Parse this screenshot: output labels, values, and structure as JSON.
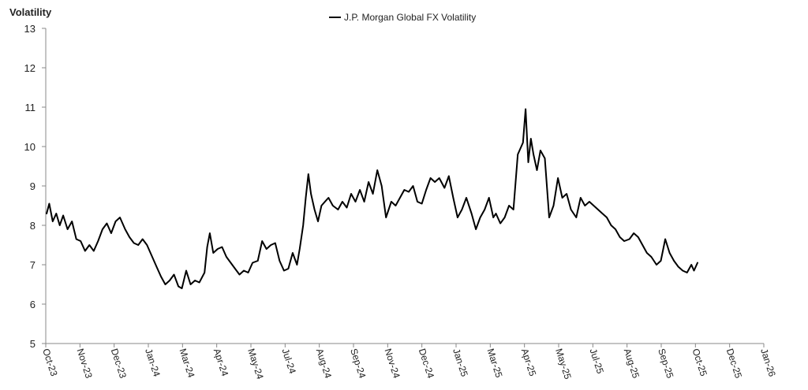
{
  "chart_data": {
    "type": "line",
    "title": "",
    "ylabel": "Volatility",
    "xlabel": "",
    "ylim": [
      5,
      13
    ],
    "yticks": [
      5,
      6,
      7,
      8,
      9,
      10,
      11,
      12,
      13
    ],
    "grid": false,
    "legend_position": "top-center",
    "line_color": "#000000",
    "xticks": [
      "Oct-23",
      "Nov-23",
      "Dec-23",
      "Jan-24",
      "Mar-24",
      "Apr-24",
      "May-24",
      "Jul-24",
      "Aug-24",
      "Sep-24",
      "Nov-24",
      "Dec-24",
      "Jan-25",
      "Mar-25",
      "Apr-25",
      "May-25",
      "Jul-25",
      "Aug-25",
      "Sep-25",
      "Oct-25",
      "Dec-25",
      "Jan-26"
    ],
    "series": [
      {
        "name": "J.P. Morgan Global FX Volatility",
        "points": [
          [
            "2023-10-02",
            8.3
          ],
          [
            "2023-10-05",
            8.55
          ],
          [
            "2023-10-09",
            8.1
          ],
          [
            "2023-10-13",
            8.3
          ],
          [
            "2023-10-17",
            8.0
          ],
          [
            "2023-10-21",
            8.25
          ],
          [
            "2023-10-26",
            7.9
          ],
          [
            "2023-10-31",
            8.1
          ],
          [
            "2023-11-05",
            7.65
          ],
          [
            "2023-11-10",
            7.6
          ],
          [
            "2023-11-15",
            7.35
          ],
          [
            "2023-11-20",
            7.5
          ],
          [
            "2023-11-25",
            7.35
          ],
          [
            "2023-11-30",
            7.6
          ],
          [
            "2023-12-05",
            7.9
          ],
          [
            "2023-12-10",
            8.05
          ],
          [
            "2023-12-15",
            7.8
          ],
          [
            "2023-12-20",
            8.1
          ],
          [
            "2023-12-25",
            8.2
          ],
          [
            "2023-12-31",
            7.9
          ],
          [
            "2024-01-05",
            7.7
          ],
          [
            "2024-01-10",
            7.55
          ],
          [
            "2024-01-15",
            7.5
          ],
          [
            "2024-01-20",
            7.65
          ],
          [
            "2024-01-25",
            7.5
          ],
          [
            "2024-01-31",
            7.2
          ],
          [
            "2024-02-05",
            6.95
          ],
          [
            "2024-02-10",
            6.7
          ],
          [
            "2024-02-15",
            6.5
          ],
          [
            "2024-02-20",
            6.6
          ],
          [
            "2024-02-25",
            6.75
          ],
          [
            "2024-03-01",
            6.45
          ],
          [
            "2024-03-05",
            6.4
          ],
          [
            "2024-03-10",
            6.85
          ],
          [
            "2024-03-15",
            6.5
          ],
          [
            "2024-03-20",
            6.6
          ],
          [
            "2024-03-25",
            6.55
          ],
          [
            "2024-03-31",
            6.8
          ],
          [
            "2024-04-03",
            7.45
          ],
          [
            "2024-04-06",
            7.8
          ],
          [
            "2024-04-10",
            7.3
          ],
          [
            "2024-04-15",
            7.4
          ],
          [
            "2024-04-20",
            7.45
          ],
          [
            "2024-04-25",
            7.2
          ],
          [
            "2024-04-30",
            7.05
          ],
          [
            "2024-05-05",
            6.9
          ],
          [
            "2024-05-10",
            6.75
          ],
          [
            "2024-05-15",
            6.85
          ],
          [
            "2024-05-20",
            6.8
          ],
          [
            "2024-05-25",
            7.05
          ],
          [
            "2024-05-31",
            7.1
          ],
          [
            "2024-06-05",
            7.6
          ],
          [
            "2024-06-10",
            7.4
          ],
          [
            "2024-06-15",
            7.5
          ],
          [
            "2024-06-20",
            7.55
          ],
          [
            "2024-06-25",
            7.1
          ],
          [
            "2024-06-30",
            6.85
          ],
          [
            "2024-07-05",
            6.9
          ],
          [
            "2024-07-10",
            7.3
          ],
          [
            "2024-07-15",
            7.0
          ],
          [
            "2024-07-18",
            7.4
          ],
          [
            "2024-07-22",
            8.0
          ],
          [
            "2024-07-25",
            8.7
          ],
          [
            "2024-07-28",
            9.3
          ],
          [
            "2024-07-31",
            8.8
          ],
          [
            "2024-08-04",
            8.4
          ],
          [
            "2024-08-08",
            8.1
          ],
          [
            "2024-08-12",
            8.5
          ],
          [
            "2024-08-16",
            8.6
          ],
          [
            "2024-08-20",
            8.7
          ],
          [
            "2024-08-25",
            8.5
          ],
          [
            "2024-08-31",
            8.4
          ],
          [
            "2024-09-05",
            8.6
          ],
          [
            "2024-09-10",
            8.45
          ],
          [
            "2024-09-15",
            8.8
          ],
          [
            "2024-09-20",
            8.6
          ],
          [
            "2024-09-25",
            8.9
          ],
          [
            "2024-09-30",
            8.6
          ],
          [
            "2024-10-05",
            9.1
          ],
          [
            "2024-10-10",
            8.8
          ],
          [
            "2024-10-15",
            9.4
          ],
          [
            "2024-10-20",
            9.0
          ],
          [
            "2024-10-25",
            8.2
          ],
          [
            "2024-10-31",
            8.6
          ],
          [
            "2024-11-05",
            8.5
          ],
          [
            "2024-11-10",
            8.7
          ],
          [
            "2024-11-15",
            8.9
          ],
          [
            "2024-11-20",
            8.85
          ],
          [
            "2024-11-25",
            9.0
          ],
          [
            "2024-11-30",
            8.6
          ],
          [
            "2024-12-05",
            8.55
          ],
          [
            "2024-12-10",
            8.9
          ],
          [
            "2024-12-15",
            9.2
          ],
          [
            "2024-12-20",
            9.1
          ],
          [
            "2024-12-25",
            9.2
          ],
          [
            "2024-12-31",
            8.95
          ],
          [
            "2025-01-05",
            9.25
          ],
          [
            "2025-01-10",
            8.7
          ],
          [
            "2025-01-15",
            8.2
          ],
          [
            "2025-01-20",
            8.4
          ],
          [
            "2025-01-25",
            8.7
          ],
          [
            "2025-01-31",
            8.3
          ],
          [
            "2025-02-05",
            7.9
          ],
          [
            "2025-02-10",
            8.2
          ],
          [
            "2025-02-15",
            8.4
          ],
          [
            "2025-02-20",
            8.7
          ],
          [
            "2025-02-25",
            8.2
          ],
          [
            "2025-02-28",
            8.3
          ],
          [
            "2025-03-05",
            8.05
          ],
          [
            "2025-03-10",
            8.2
          ],
          [
            "2025-03-15",
            8.5
          ],
          [
            "2025-03-20",
            8.4
          ],
          [
            "2025-03-25",
            9.8
          ],
          [
            "2025-03-31",
            10.1
          ],
          [
            "2025-04-03",
            10.95
          ],
          [
            "2025-04-06",
            9.6
          ],
          [
            "2025-04-09",
            10.2
          ],
          [
            "2025-04-12",
            9.8
          ],
          [
            "2025-04-16",
            9.4
          ],
          [
            "2025-04-20",
            9.9
          ],
          [
            "2025-04-25",
            9.7
          ],
          [
            "2025-04-30",
            8.2
          ],
          [
            "2025-05-05",
            8.5
          ],
          [
            "2025-05-10",
            9.2
          ],
          [
            "2025-05-15",
            8.7
          ],
          [
            "2025-05-20",
            8.8
          ],
          [
            "2025-05-25",
            8.4
          ],
          [
            "2025-05-31",
            8.2
          ],
          [
            "2025-06-05",
            8.7
          ],
          [
            "2025-06-10",
            8.5
          ],
          [
            "2025-06-15",
            8.6
          ],
          [
            "2025-06-20",
            8.5
          ],
          [
            "2025-06-25",
            8.4
          ],
          [
            "2025-06-30",
            8.3
          ],
          [
            "2025-07-05",
            8.2
          ],
          [
            "2025-07-10",
            8.0
          ],
          [
            "2025-07-15",
            7.9
          ],
          [
            "2025-07-20",
            7.7
          ],
          [
            "2025-07-25",
            7.6
          ],
          [
            "2025-07-31",
            7.65
          ],
          [
            "2025-08-05",
            7.8
          ],
          [
            "2025-08-10",
            7.7
          ],
          [
            "2025-08-15",
            7.5
          ],
          [
            "2025-08-20",
            7.3
          ],
          [
            "2025-08-25",
            7.2
          ],
          [
            "2025-08-31",
            7.0
          ],
          [
            "2025-09-05",
            7.1
          ],
          [
            "2025-09-10",
            7.65
          ],
          [
            "2025-09-15",
            7.3
          ],
          [
            "2025-09-20",
            7.1
          ],
          [
            "2025-09-25",
            6.95
          ],
          [
            "2025-09-30",
            6.85
          ],
          [
            "2025-10-05",
            6.8
          ],
          [
            "2025-10-10",
            7.0
          ],
          [
            "2025-10-13",
            6.85
          ],
          [
            "2025-10-17",
            7.05
          ]
        ]
      }
    ]
  }
}
